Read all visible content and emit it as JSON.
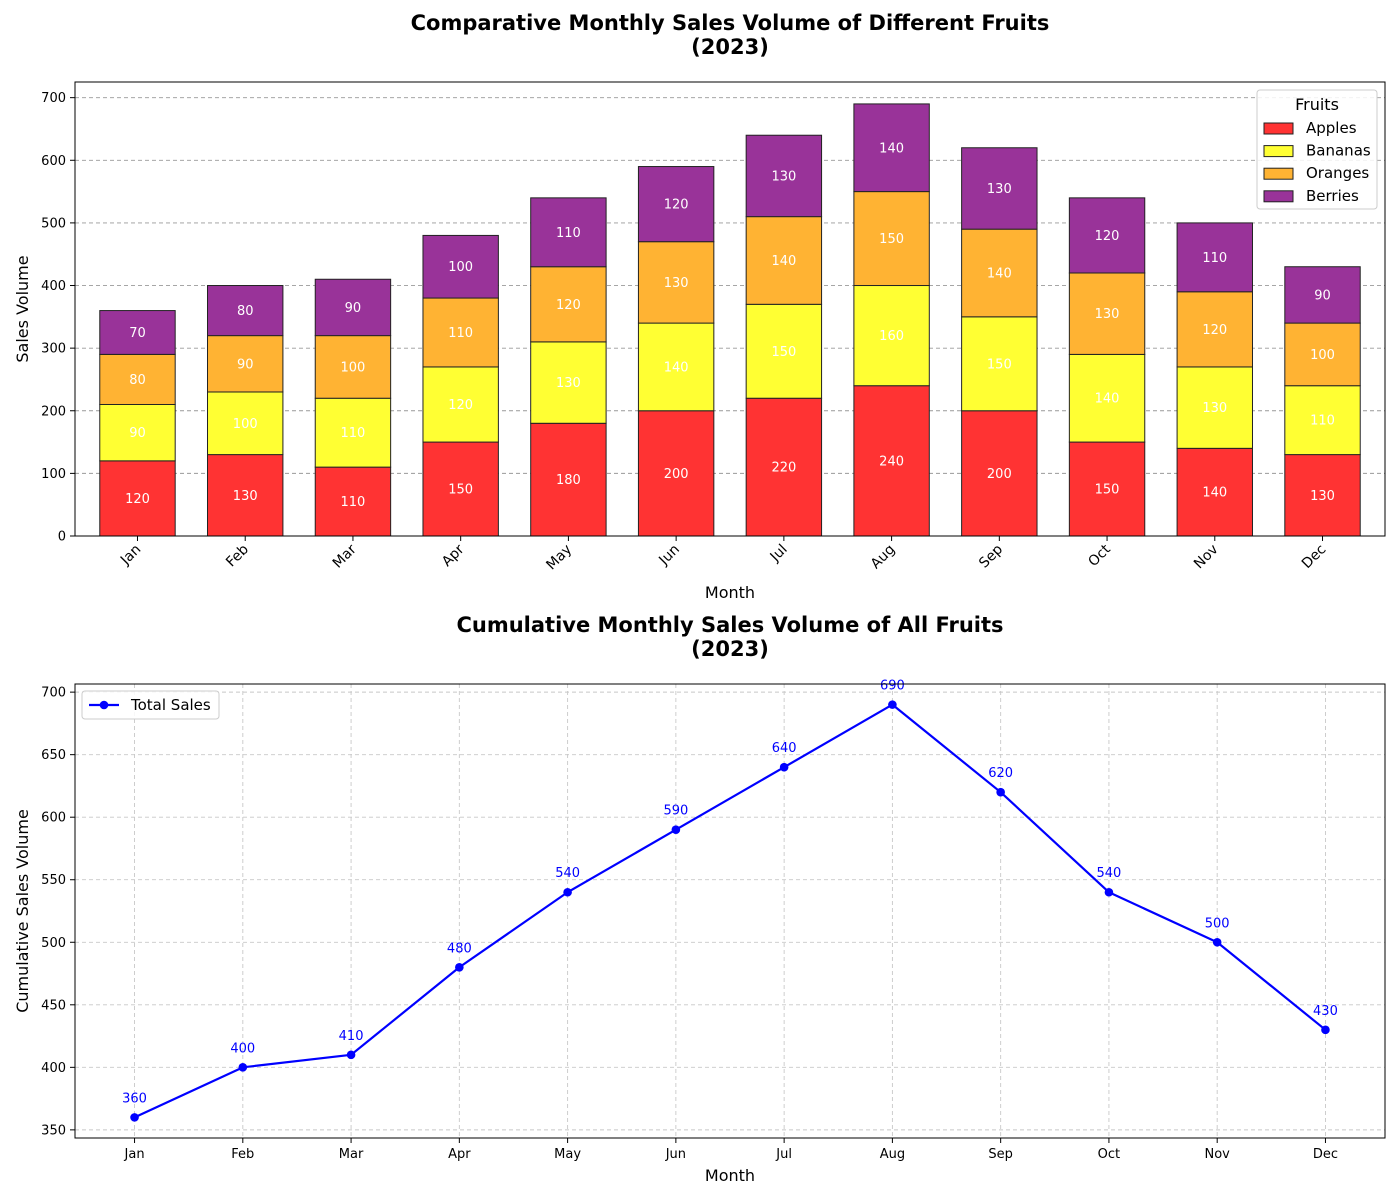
{
  "chart_data": [
    {
      "type": "bar",
      "stacked": true,
      "title_line1": "Comparative Monthly Sales Volume of Different Fruits",
      "title_line2": "(2023)",
      "xlabel": "Month",
      "ylabel": "Sales Volume",
      "categories": [
        "Jan",
        "Feb",
        "Mar",
        "Apr",
        "May",
        "Jun",
        "Jul",
        "Aug",
        "Sep",
        "Oct",
        "Nov",
        "Dec"
      ],
      "ylim": [
        0,
        725
      ],
      "yticks": [
        0,
        100,
        200,
        300,
        400,
        500,
        600,
        700
      ],
      "grid": "y-dashed",
      "legend": {
        "title": "Fruits",
        "placement": "top-right"
      },
      "series": [
        {
          "name": "Apples",
          "color": "#ff3333",
          "values": [
            120,
            130,
            110,
            150,
            180,
            200,
            220,
            240,
            200,
            150,
            140,
            130
          ]
        },
        {
          "name": "Bananas",
          "color": "#ffff33",
          "values": [
            90,
            100,
            110,
            120,
            130,
            140,
            150,
            160,
            150,
            140,
            130,
            110
          ]
        },
        {
          "name": "Oranges",
          "color": "#ffb333",
          "values": [
            80,
            90,
            100,
            110,
            120,
            130,
            140,
            150,
            140,
            130,
            120,
            100
          ]
        },
        {
          "name": "Berries",
          "color": "#993399",
          "values": [
            70,
            80,
            90,
            100,
            110,
            120,
            130,
            140,
            130,
            120,
            110,
            90
          ]
        }
      ]
    },
    {
      "type": "line",
      "title_line1": "Cumulative Monthly Sales Volume of All Fruits",
      "title_line2": "(2023)",
      "xlabel": "Month",
      "ylabel": "Cumulative Sales Volume",
      "categories": [
        "Jan",
        "Feb",
        "Mar",
        "Apr",
        "May",
        "Jun",
        "Jul",
        "Aug",
        "Sep",
        "Oct",
        "Nov",
        "Dec"
      ],
      "ylim": [
        343.5,
        706.5
      ],
      "yticks": [
        350,
        400,
        450,
        500,
        550,
        600,
        650,
        700
      ],
      "grid": "both-dashed",
      "legend": {
        "placement": "top-left"
      },
      "series": [
        {
          "name": "Total Sales",
          "color": "#0000ff",
          "values": [
            360,
            400,
            410,
            480,
            540,
            590,
            640,
            690,
            620,
            540,
            500,
            430
          ]
        }
      ]
    }
  ]
}
